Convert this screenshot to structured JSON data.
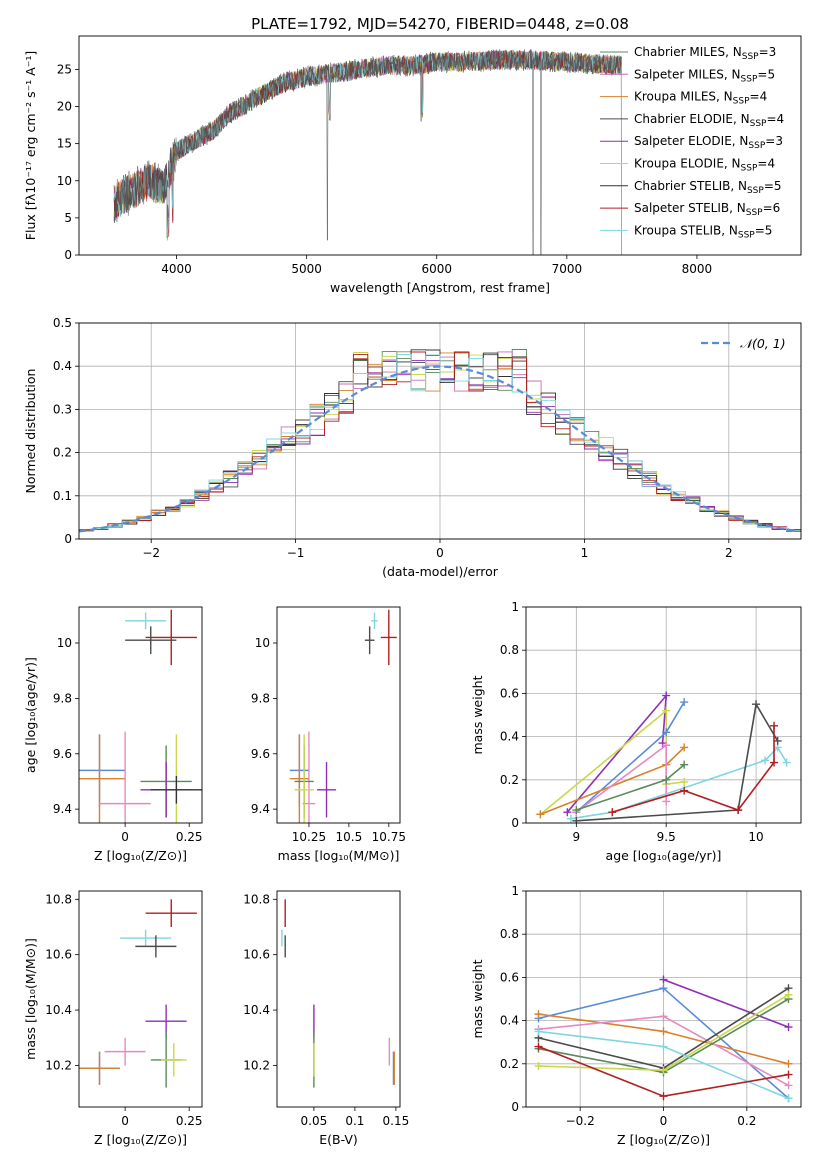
{
  "figure": {
    "title": "PLATE=1792, MJD=54270, FIBERID=0448, z=0.08"
  },
  "chart_data": [
    {
      "id": "spectrum",
      "type": "line",
      "xlabel": "wavelength [Angstrom, rest frame]",
      "ylabel": "Flux [fλ10⁻¹⁷ erg cm⁻² s⁻¹ A⁻¹]",
      "xlim": [
        3250,
        8800
      ],
      "ylim": [
        0,
        29.5
      ],
      "xticks": [
        4000,
        5000,
        6000,
        7000,
        8000
      ],
      "yticks": [
        0,
        5,
        10,
        15,
        20,
        25
      ],
      "legend_position": "right",
      "series": [
        {
          "name": "Chabrier MILES, N_SSP=3",
          "color": "#5b8a5b"
        },
        {
          "name": "Salpeter MILES, N_SSP=5",
          "color": "#c86fb6"
        },
        {
          "name": "Kroupa MILES, N_SSP=4",
          "color": "#d9802a"
        },
        {
          "name": "Chabrier ELODIE, N_SSP=4",
          "color": "#4b4b4b"
        },
        {
          "name": "Salpeter ELODIE, N_SSP=3",
          "color": "#8e2fb5"
        },
        {
          "name": "Kroupa ELODIE, N_SSP=4",
          "color": "#c9d84a"
        },
        {
          "name": "Chabrier STELIB, N_SSP=5",
          "color": "#333333"
        },
        {
          "name": "Salpeter STELIB, N_SSP=6",
          "color": "#b02020"
        },
        {
          "name": "Kroupa STELIB, N_SSP=5",
          "color": "#7fd6e0"
        }
      ],
      "spectrum_shape": {
        "x": [
          3520,
          3600,
          3700,
          3800,
          3900,
          4000,
          4100,
          4200,
          4300,
          4400,
          4500,
          4600,
          4700,
          4800,
          4900,
          5000,
          5200,
          5400,
          5600,
          5800,
          6000,
          6200,
          6400,
          6600,
          6800,
          7000,
          7200,
          7400
        ],
        "y": [
          7,
          8,
          9,
          10,
          9,
          14,
          15,
          16,
          17,
          19,
          20,
          21,
          22,
          23,
          23.5,
          24,
          24.5,
          25,
          25.5,
          25.5,
          26,
          26,
          26.2,
          26.3,
          26.2,
          26,
          25.8,
          25.5
        ]
      }
    },
    {
      "id": "residuals",
      "type": "line",
      "xlabel": "(data-model)/error",
      "ylabel": "Normed distribution",
      "xlim": [
        -2.5,
        2.5
      ],
      "ylim": [
        0,
        0.5
      ],
      "xticks": [
        -2,
        -1,
        0,
        1,
        2
      ],
      "yticks": [
        0.0,
        0.1,
        0.2,
        0.3,
        0.4,
        0.5
      ],
      "grid": true,
      "legend": "𝒩(0, 1)",
      "legend_position": "top-right",
      "gaussian": {
        "mean": 0,
        "sigma": 1,
        "color": "#5b8bd6"
      },
      "hist_colors": [
        "#5b8a5b",
        "#c86fb6",
        "#d9802a",
        "#4b4b4b",
        "#8e2fb5",
        "#c9d84a",
        "#333333",
        "#b02020",
        "#7fd6e0"
      ]
    },
    {
      "id": "age_vs_Z",
      "type": "scatter",
      "xlabel": "Z [log₁₀(Z/Z⊙)]",
      "ylabel": "age  [log₁₀(age/yr)]",
      "xlim": [
        -0.18,
        0.3
      ],
      "ylim": [
        9.35,
        10.13
      ],
      "xticks": [
        0.0,
        0.25
      ],
      "yticks": [
        9.4,
        9.6,
        9.8,
        10.0
      ],
      "points": [
        {
          "x": 0.08,
          "y": 10.08,
          "xerr": 0.08,
          "yerr": 0.03,
          "color": "#7fd6e0"
        },
        {
          "x": 0.18,
          "y": 10.02,
          "xerr": 0.1,
          "yerr": 0.1,
          "color": "#b02020"
        },
        {
          "x": 0.1,
          "y": 10.01,
          "xerr": 0.1,
          "yerr": 0.05,
          "color": "#4b4b4b"
        },
        {
          "x": -0.1,
          "y": 9.54,
          "xerr": 0.1,
          "yerr": 0.13,
          "color": "#5b8bd6"
        },
        {
          "x": -0.1,
          "y": 9.51,
          "xerr": 0.1,
          "yerr": 0.16,
          "color": "#d9802a"
        },
        {
          "x": 0.0,
          "y": 9.42,
          "xerr": 0.1,
          "yerr": 0.26,
          "color": "#e58ac0"
        },
        {
          "x": 0.16,
          "y": 9.5,
          "xerr": 0.1,
          "yerr": 0.13,
          "color": "#5b8a5b"
        },
        {
          "x": 0.16,
          "y": 9.47,
          "xerr": 0.1,
          "yerr": 0.1,
          "color": "#8e2fb5"
        },
        {
          "x": 0.2,
          "y": 9.47,
          "xerr": 0.07,
          "yerr": 0.2,
          "color": "#c9d84a"
        },
        {
          "x": 0.2,
          "y": 9.47,
          "xerr": 0.1,
          "yerr": 0.05,
          "color": "#333333"
        }
      ]
    },
    {
      "id": "age_vs_mass",
      "type": "scatter",
      "xlabel": "mass [log₁₀(M/M⊙)]",
      "ylabel": "",
      "xlim": [
        10.05,
        10.82
      ],
      "ylim": [
        9.35,
        10.13
      ],
      "xticks": [
        10.25,
        10.5,
        10.75
      ],
      "yticks": [
        9.4,
        9.6,
        9.8,
        10.0
      ],
      "points": [
        {
          "x": 10.66,
          "y": 10.08,
          "xerr": 0.02,
          "yerr": 0.03,
          "color": "#7fd6e0"
        },
        {
          "x": 10.75,
          "y": 10.02,
          "xerr": 0.05,
          "yerr": 0.1,
          "color": "#b02020"
        },
        {
          "x": 10.63,
          "y": 10.01,
          "xerr": 0.03,
          "yerr": 0.05,
          "color": "#4b4b4b"
        },
        {
          "x": 10.19,
          "y": 9.54,
          "xerr": 0.06,
          "yerr": 0.13,
          "color": "#5b8bd6"
        },
        {
          "x": 10.19,
          "y": 9.51,
          "xerr": 0.06,
          "yerr": 0.16,
          "color": "#d9802a"
        },
        {
          "x": 10.25,
          "y": 9.42,
          "xerr": 0.04,
          "yerr": 0.26,
          "color": "#e58ac0"
        },
        {
          "x": 10.22,
          "y": 9.5,
          "xerr": 0.06,
          "yerr": 0.13,
          "color": "#5b8a5b"
        },
        {
          "x": 10.36,
          "y": 9.47,
          "xerr": 0.06,
          "yerr": 0.1,
          "color": "#8e2fb5"
        },
        {
          "x": 10.22,
          "y": 9.47,
          "xerr": 0.06,
          "yerr": 0.2,
          "color": "#c9d84a"
        }
      ]
    },
    {
      "id": "massweight_vs_age",
      "type": "line",
      "xlabel": "age  [log₁₀(age/yr)]",
      "ylabel": "mass weight",
      "xlim": [
        8.72,
        10.25
      ],
      "ylim": [
        0,
        1.0
      ],
      "xticks": [
        9.0,
        9.5,
        10.0
      ],
      "yticks": [
        0.0,
        0.2,
        0.4,
        0.6,
        0.8,
        1.0
      ],
      "grid": true,
      "series": [
        {
          "color": "#8e2fb5",
          "x": [
            8.95,
            9.5,
            9.48
          ],
          "y": [
            0.05,
            0.59,
            0.37
          ]
        },
        {
          "color": "#c9d84a",
          "x": [
            8.8,
            9.5,
            9.5,
            9.6
          ],
          "y": [
            0.04,
            0.52,
            0.18,
            0.19
          ]
        },
        {
          "color": "#5b8bd6",
          "x": [
            9.0,
            9.5,
            9.6
          ],
          "y": [
            0.05,
            0.42,
            0.56
          ]
        },
        {
          "color": "#d9802a",
          "x": [
            8.8,
            9.5,
            9.6
          ],
          "y": [
            0.04,
            0.27,
            0.35
          ]
        },
        {
          "color": "#e58ac0",
          "x": [
            9.0,
            9.5,
            9.5
          ],
          "y": [
            0.05,
            0.36,
            0.1
          ]
        },
        {
          "color": "#5b8a5b",
          "x": [
            9.0,
            9.5,
            9.6
          ],
          "y": [
            0.06,
            0.2,
            0.27
          ]
        },
        {
          "color": "#7fd6e0",
          "x": [
            8.97,
            9.2,
            10.05,
            10.12,
            10.17
          ],
          "y": [
            0.02,
            0.05,
            0.29,
            0.35,
            0.28
          ]
        },
        {
          "color": "#4b4b4b",
          "x": [
            9.0,
            9.9,
            10.0,
            10.12
          ],
          "y": [
            0.01,
            0.06,
            0.55,
            0.38
          ]
        },
        {
          "color": "#b02020",
          "x": [
            9.2,
            9.6,
            9.9,
            10.1,
            10.1
          ],
          "y": [
            0.05,
            0.15,
            0.06,
            0.28,
            0.45
          ]
        }
      ]
    },
    {
      "id": "mass_vs_Z",
      "type": "scatter",
      "xlabel": "Z [log₁₀(Z/Z⊙)]",
      "ylabel": "mass [log₁₀(M/M⊙)]",
      "xlim": [
        -0.18,
        0.3
      ],
      "ylim": [
        10.05,
        10.83
      ],
      "xticks": [
        0.0,
        0.25
      ],
      "yticks": [
        10.2,
        10.4,
        10.6,
        10.8
      ],
      "points": [
        {
          "x": 0.18,
          "y": 10.75,
          "xerr": 0.1,
          "yerr": 0.05,
          "color": "#b02020"
        },
        {
          "x": 0.08,
          "y": 10.66,
          "xerr": 0.1,
          "yerr": 0.03,
          "color": "#7fd6e0"
        },
        {
          "x": 0.12,
          "y": 10.63,
          "xerr": 0.08,
          "yerr": 0.04,
          "color": "#4b4b4b"
        },
        {
          "x": 0.16,
          "y": 10.36,
          "xerr": 0.08,
          "yerr": 0.06,
          "color": "#8e2fb5"
        },
        {
          "x": 0.0,
          "y": 10.25,
          "xerr": 0.08,
          "yerr": 0.05,
          "color": "#e58ac0"
        },
        {
          "x": 0.16,
          "y": 10.22,
          "xerr": 0.06,
          "yerr": 0.1,
          "color": "#5b8a5b"
        },
        {
          "x": 0.19,
          "y": 10.22,
          "xerr": 0.05,
          "yerr": 0.06,
          "color": "#c9d84a"
        },
        {
          "x": -0.1,
          "y": 10.19,
          "xerr": 0.08,
          "yerr": 0.06,
          "color": "#5b8bd6"
        },
        {
          "x": -0.1,
          "y": 10.19,
          "xerr": 0.08,
          "yerr": 0.06,
          "color": "#d9802a"
        }
      ]
    },
    {
      "id": "mass_vs_ebv",
      "type": "scatter",
      "xlabel": "E(B-V)",
      "ylabel": "",
      "xlim": [
        0.005,
        0.155
      ],
      "ylim": [
        10.05,
        10.83
      ],
      "xticks": [
        0.05,
        0.1,
        0.15
      ],
      "yticks": [
        10.2,
        10.4,
        10.6,
        10.8
      ],
      "points": [
        {
          "x": 0.015,
          "y": 10.75,
          "xerr": 0.0,
          "yerr": 0.05,
          "color": "#b02020"
        },
        {
          "x": 0.011,
          "y": 10.66,
          "xerr": 0.0,
          "yerr": 0.03,
          "color": "#7fd6e0"
        },
        {
          "x": 0.015,
          "y": 10.63,
          "xerr": 0.0,
          "yerr": 0.04,
          "color": "#4b4b4b"
        },
        {
          "x": 0.05,
          "y": 10.36,
          "xerr": 0.0,
          "yerr": 0.06,
          "color": "#8e2fb5"
        },
        {
          "x": 0.05,
          "y": 10.22,
          "xerr": 0.0,
          "yerr": 0.1,
          "color": "#5b8a5b"
        },
        {
          "x": 0.05,
          "y": 10.22,
          "xerr": 0.0,
          "yerr": 0.06,
          "color": "#c9d84a"
        },
        {
          "x": 0.142,
          "y": 10.25,
          "xerr": 0.0,
          "yerr": 0.05,
          "color": "#e58ac0"
        },
        {
          "x": 0.147,
          "y": 10.19,
          "xerr": 0.0,
          "yerr": 0.06,
          "color": "#5b8bd6"
        },
        {
          "x": 0.148,
          "y": 10.19,
          "xerr": 0.0,
          "yerr": 0.06,
          "color": "#d9802a"
        }
      ]
    },
    {
      "id": "massweight_vs_Z",
      "type": "line",
      "xlabel": "Z [log₁₀(Z/Z⊙)]",
      "ylabel": "mass weight",
      "xlim": [
        -0.33,
        0.33
      ],
      "ylim": [
        0,
        1.0
      ],
      "xticks": [
        -0.2,
        0.0,
        0.2
      ],
      "yticks": [
        0.0,
        0.2,
        0.4,
        0.6,
        0.8,
        1.0
      ],
      "grid": true,
      "series": [
        {
          "color": "#5b8bd6",
          "x": [
            -0.3,
            0.0,
            0.3
          ],
          "y": [
            0.41,
            0.55,
            0.04
          ]
        },
        {
          "color": "#d9802a",
          "x": [
            -0.3,
            0.0,
            0.3
          ],
          "y": [
            0.43,
            0.35,
            0.2
          ]
        },
        {
          "color": "#e58ac0",
          "x": [
            -0.3,
            0.0,
            0.3
          ],
          "y": [
            0.36,
            0.42,
            0.1
          ]
        },
        {
          "color": "#8e2fb5",
          "x": [
            0.0,
            0.3
          ],
          "y": [
            0.59,
            0.37
          ]
        },
        {
          "color": "#4b4b4b",
          "x": [
            -0.3,
            0.0,
            0.3
          ],
          "y": [
            0.32,
            0.18,
            0.55
          ]
        },
        {
          "color": "#5b8a5b",
          "x": [
            -0.3,
            0.0,
            0.3
          ],
          "y": [
            0.27,
            0.16,
            0.5
          ]
        },
        {
          "color": "#c9d84a",
          "x": [
            -0.3,
            0.0,
            0.3
          ],
          "y": [
            0.19,
            0.17,
            0.52
          ]
        },
        {
          "color": "#7fd6e0",
          "x": [
            -0.3,
            0.0,
            0.3
          ],
          "y": [
            0.35,
            0.28,
            0.04
          ]
        },
        {
          "color": "#b02020",
          "x": [
            -0.3,
            0.0,
            0.3
          ],
          "y": [
            0.28,
            0.05,
            0.15
          ]
        }
      ]
    }
  ]
}
